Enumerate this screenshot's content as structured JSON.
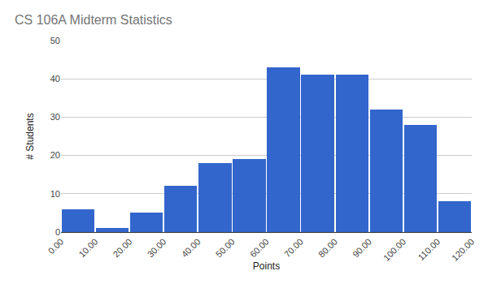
{
  "chart_data": {
    "type": "histogram",
    "title": "CS 106A Midterm Statistics",
    "x_label": "Points",
    "y_label": "# Students",
    "bins": [
      0,
      10,
      20,
      30,
      40,
      50,
      60,
      70,
      80,
      90,
      100,
      110,
      120
    ],
    "values": [
      6,
      1,
      5,
      12,
      18,
      19,
      43,
      41,
      41,
      32,
      28,
      8
    ],
    "color": "#3366cc",
    "xlim": [
      0,
      120
    ],
    "xticks": [
      {
        "value": 0,
        "label": "0.00"
      },
      {
        "value": 10,
        "label": "10.00"
      },
      {
        "value": 20,
        "label": "20.00"
      },
      {
        "value": 30,
        "label": "30.00"
      },
      {
        "value": 40,
        "label": "40.00"
      },
      {
        "value": 50,
        "label": "50.00"
      },
      {
        "value": 60,
        "label": "60.00"
      },
      {
        "value": 70,
        "label": "70.00"
      },
      {
        "value": 80,
        "label": "80.00"
      },
      {
        "value": 90,
        "label": "90.00"
      },
      {
        "value": 100,
        "label": "100.00"
      },
      {
        "value": 110,
        "label": "110.00"
      },
      {
        "value": 120,
        "label": "120.00"
      }
    ],
    "ylim": [
      0,
      50
    ],
    "yticks": [
      0,
      10,
      20,
      30,
      40,
      50
    ],
    "grid": true
  }
}
